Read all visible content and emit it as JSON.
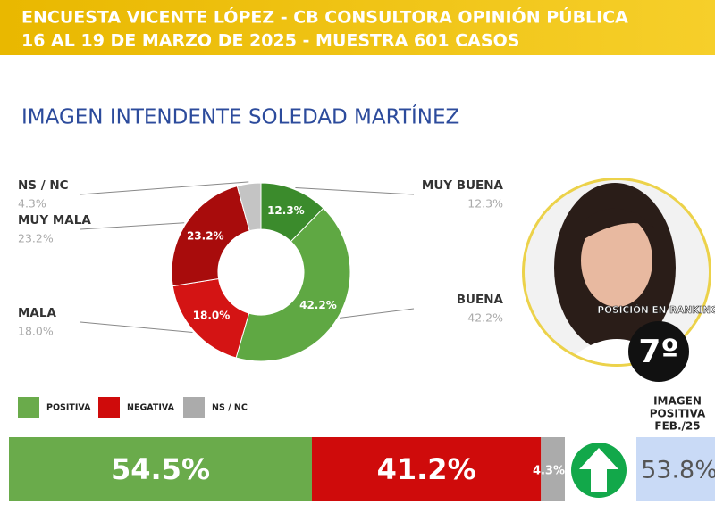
{
  "header": {
    "line1": "ENCUESTA VICENTE LÓPEZ - CB CONSULTORA OPINIÓN PÚBLICA",
    "line2": "16 AL 19 DE MARZO DE 2025 - MUESTRA 601 CASOS"
  },
  "chart_data": [
    {
      "type": "pie",
      "donut": true,
      "title": "IMAGEN INTENDENTE  SOLEDAD MARTÍNEZ",
      "categories": [
        "MUY BUENA",
        "BUENA",
        "MALA",
        "MUY MALA",
        "NS / NC"
      ],
      "values": [
        12.3,
        42.2,
        18.0,
        23.2,
        4.3
      ],
      "value_labels": [
        "12.3%",
        "42.2%",
        "18.0%",
        "23.2%",
        "4.3%"
      ],
      "colors": [
        "#3b8b2c",
        "#5fa843",
        "#d41414",
        "#a80c0c",
        "#c4c4c4"
      ]
    },
    {
      "type": "bar",
      "stacked": true,
      "orientation": "horizontal",
      "xlim": [
        0,
        100
      ],
      "series": [
        {
          "name": "POSITIVA",
          "color": "#6aab4b",
          "values": [
            54.5
          ],
          "value_labels": [
            "54.5%"
          ]
        },
        {
          "name": "NEGATIVA",
          "color": "#cf0b0b",
          "values": [
            41.2
          ],
          "value_labels": [
            "41.2%"
          ]
        },
        {
          "name": "NS / NC",
          "color": "#ababab",
          "values": [
            4.3
          ],
          "value_labels": [
            "4.3%"
          ]
        }
      ]
    }
  ],
  "previous": {
    "label_lines": [
      "IMAGEN",
      "POSITIVA",
      "FEB./25"
    ],
    "value": "53.8%"
  },
  "ranking": {
    "label": "POSICIÓN EN RANKING",
    "position": "7º"
  }
}
